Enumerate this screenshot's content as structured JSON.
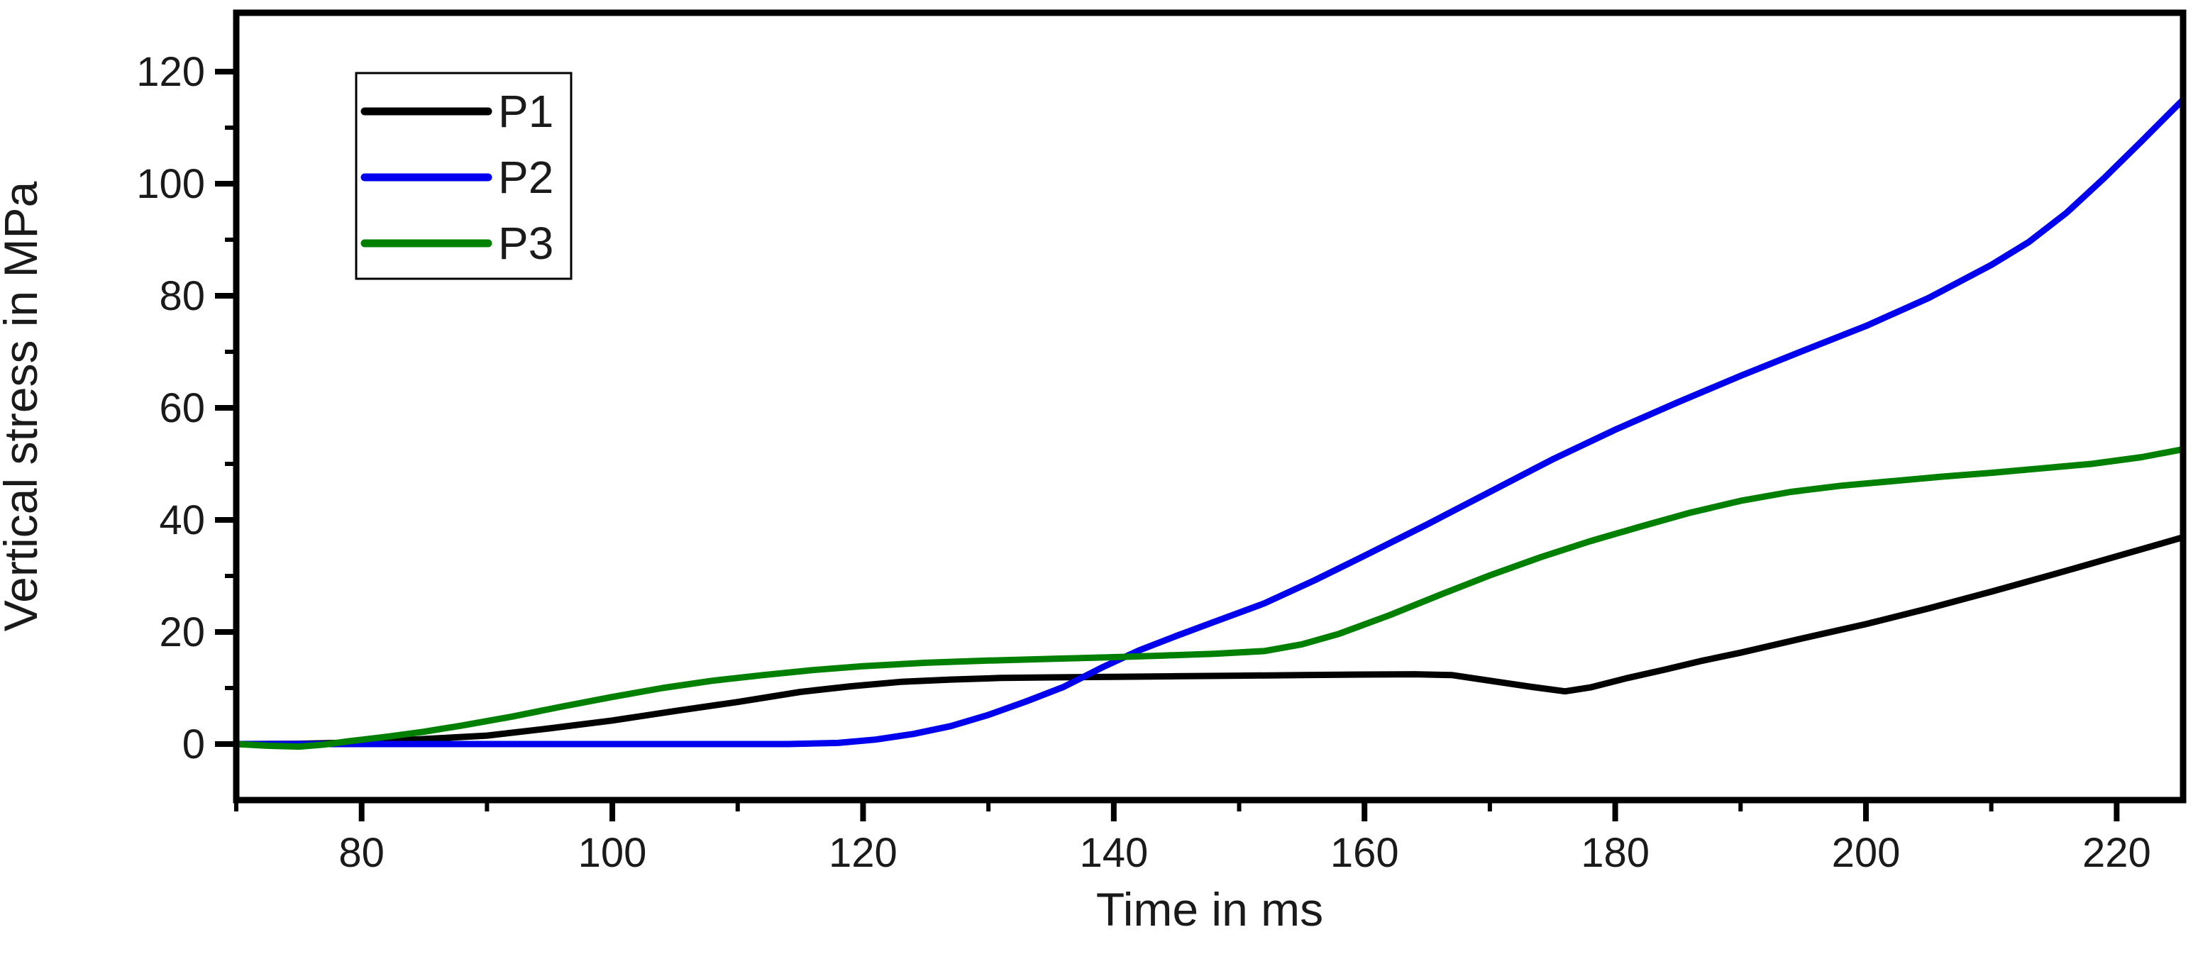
{
  "chart_data": {
    "type": "line",
    "title": "",
    "xlabel": "Time in ms",
    "ylabel": "Vertical stress in MPa",
    "xlim": [
      70,
      225.3
    ],
    "ylim": [
      -10,
      130.5
    ],
    "x_major_ticks": [
      80,
      100,
      120,
      140,
      160,
      180,
      200,
      220
    ],
    "x_minor_ticks": [
      70,
      90,
      110,
      130,
      150,
      170,
      190,
      210
    ],
    "y_major_ticks": [
      0,
      20,
      40,
      60,
      80,
      100,
      120
    ],
    "y_minor_ticks": [
      10,
      30,
      50,
      70,
      90,
      110
    ],
    "grid": false,
    "colors": {
      "axis": "#000000",
      "text": "#1a1a1a",
      "background": "#ffffff"
    },
    "legend": {
      "position": "top-left-inside",
      "entries": [
        "P1",
        "P2",
        "P3"
      ]
    },
    "series": [
      {
        "name": "P1",
        "color": "#000000",
        "points": [
          [
            70,
            0
          ],
          [
            75,
            0.05
          ],
          [
            80,
            0.3
          ],
          [
            85,
            0.9
          ],
          [
            90,
            1.5
          ],
          [
            95,
            2.8
          ],
          [
            100,
            4.2
          ],
          [
            105,
            5.9
          ],
          [
            110,
            7.5
          ],
          [
            115,
            9.3
          ],
          [
            119,
            10.3
          ],
          [
            123,
            11.1
          ],
          [
            127,
            11.5
          ],
          [
            131,
            11.8
          ],
          [
            135,
            11.9
          ],
          [
            140,
            12.0
          ],
          [
            145,
            12.1
          ],
          [
            150,
            12.2
          ],
          [
            155,
            12.3
          ],
          [
            160,
            12.4
          ],
          [
            164,
            12.45
          ],
          [
            167,
            12.3
          ],
          [
            170,
            11.3
          ],
          [
            173,
            10.3
          ],
          [
            176,
            9.4
          ],
          [
            178,
            10.1
          ],
          [
            181,
            11.8
          ],
          [
            184,
            13.3
          ],
          [
            187,
            14.9
          ],
          [
            190,
            16.3
          ],
          [
            195,
            18.9
          ],
          [
            200,
            21.4
          ],
          [
            205,
            24.2
          ],
          [
            210,
            27.2
          ],
          [
            215,
            30.3
          ],
          [
            220,
            33.5
          ],
          [
            225.3,
            36.9
          ]
        ]
      },
      {
        "name": "P2",
        "color": "#0000ee",
        "points": [
          [
            70,
            0
          ],
          [
            80,
            0
          ],
          [
            90,
            0
          ],
          [
            100,
            0
          ],
          [
            108,
            0
          ],
          [
            114,
            0
          ],
          [
            118,
            0.2
          ],
          [
            121,
            0.8
          ],
          [
            124,
            1.8
          ],
          [
            127,
            3.2
          ],
          [
            130,
            5.2
          ],
          [
            133,
            7.6
          ],
          [
            136,
            10.2
          ],
          [
            139,
            13.6
          ],
          [
            142,
            16.7
          ],
          [
            145,
            19.3
          ],
          [
            148,
            21.8
          ],
          [
            152,
            25.1
          ],
          [
            156,
            29.2
          ],
          [
            160,
            33.6
          ],
          [
            165,
            39.2
          ],
          [
            170,
            45.0
          ],
          [
            175,
            50.8
          ],
          [
            180,
            56.1
          ],
          [
            185,
            61.0
          ],
          [
            190,
            65.7
          ],
          [
            195,
            70.2
          ],
          [
            200,
            74.6
          ],
          [
            205,
            79.6
          ],
          [
            210,
            85.5
          ],
          [
            213,
            89.6
          ],
          [
            216,
            94.8
          ],
          [
            219,
            101.0
          ],
          [
            222,
            107.6
          ],
          [
            225.3,
            115.0
          ]
        ]
      },
      {
        "name": "P3",
        "color": "#008000",
        "points": [
          [
            70,
            0
          ],
          [
            72.5,
            -0.3
          ],
          [
            75,
            -0.45
          ],
          [
            77,
            -0.1
          ],
          [
            79,
            0.5
          ],
          [
            82,
            1.3
          ],
          [
            85,
            2.2
          ],
          [
            88,
            3.3
          ],
          [
            92,
            4.9
          ],
          [
            96,
            6.7
          ],
          [
            100,
            8.4
          ],
          [
            104,
            10.0
          ],
          [
            108,
            11.3
          ],
          [
            112,
            12.3
          ],
          [
            116,
            13.2
          ],
          [
            120,
            13.9
          ],
          [
            125,
            14.5
          ],
          [
            130,
            14.9
          ],
          [
            135,
            15.2
          ],
          [
            140,
            15.5
          ],
          [
            144,
            15.8
          ],
          [
            148,
            16.1
          ],
          [
            152,
            16.6
          ],
          [
            155,
            17.8
          ],
          [
            158,
            19.7
          ],
          [
            162,
            23.0
          ],
          [
            166,
            26.6
          ],
          [
            170,
            30.1
          ],
          [
            174,
            33.3
          ],
          [
            178,
            36.2
          ],
          [
            182,
            38.8
          ],
          [
            186,
            41.3
          ],
          [
            190,
            43.4
          ],
          [
            194,
            45.0
          ],
          [
            198,
            46.1
          ],
          [
            202,
            46.9
          ],
          [
            206,
            47.7
          ],
          [
            210,
            48.4
          ],
          [
            214,
            49.2
          ],
          [
            218,
            50.0
          ],
          [
            222,
            51.2
          ],
          [
            225.3,
            52.6
          ]
        ]
      }
    ]
  }
}
